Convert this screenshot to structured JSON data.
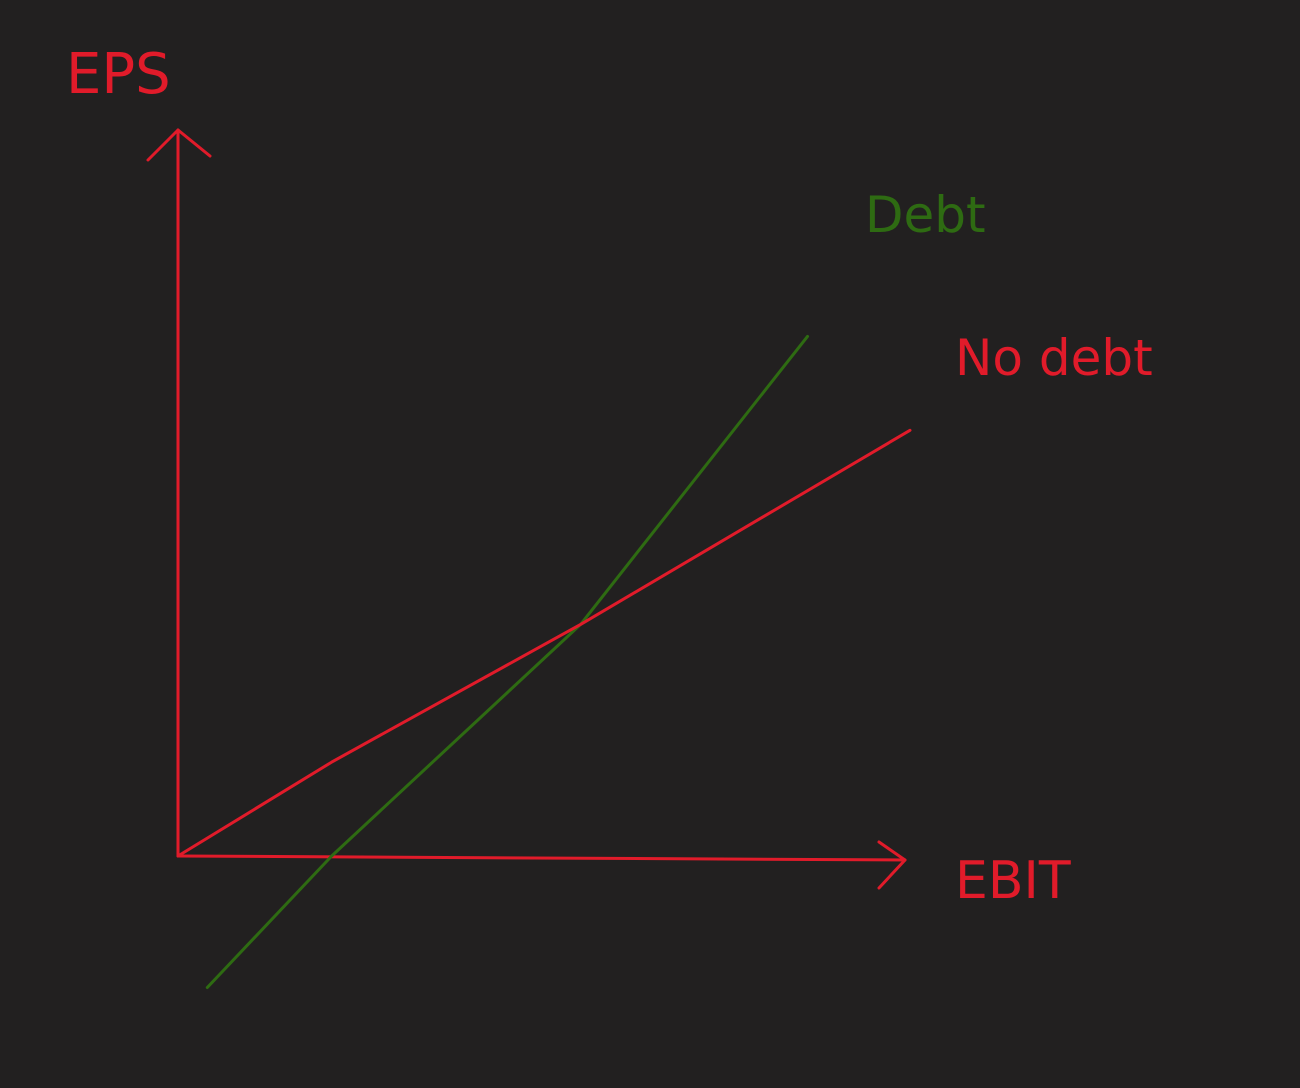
{
  "chart_data": {
    "type": "line",
    "title": "",
    "xlabel": "EBIT",
    "ylabel": "EPS",
    "xlim": [
      0,
      10
    ],
    "ylim": [
      -2.1,
      10
    ],
    "grid": false,
    "legend": "none",
    "series": [
      {
        "name": "Debt",
        "color": "#2e6b12",
        "x": [
          0.4,
          2.1,
          5.5,
          8.6
        ],
        "y": [
          -2.1,
          0,
          3.7,
          8.3
        ]
      },
      {
        "name": "No debt",
        "color": "#e11b2a",
        "x": [
          0,
          2.1,
          5.5,
          10
        ],
        "y": [
          0,
          1.5,
          3.7,
          6.8
        ]
      }
    ],
    "axis_color": "#e11b2a"
  }
}
